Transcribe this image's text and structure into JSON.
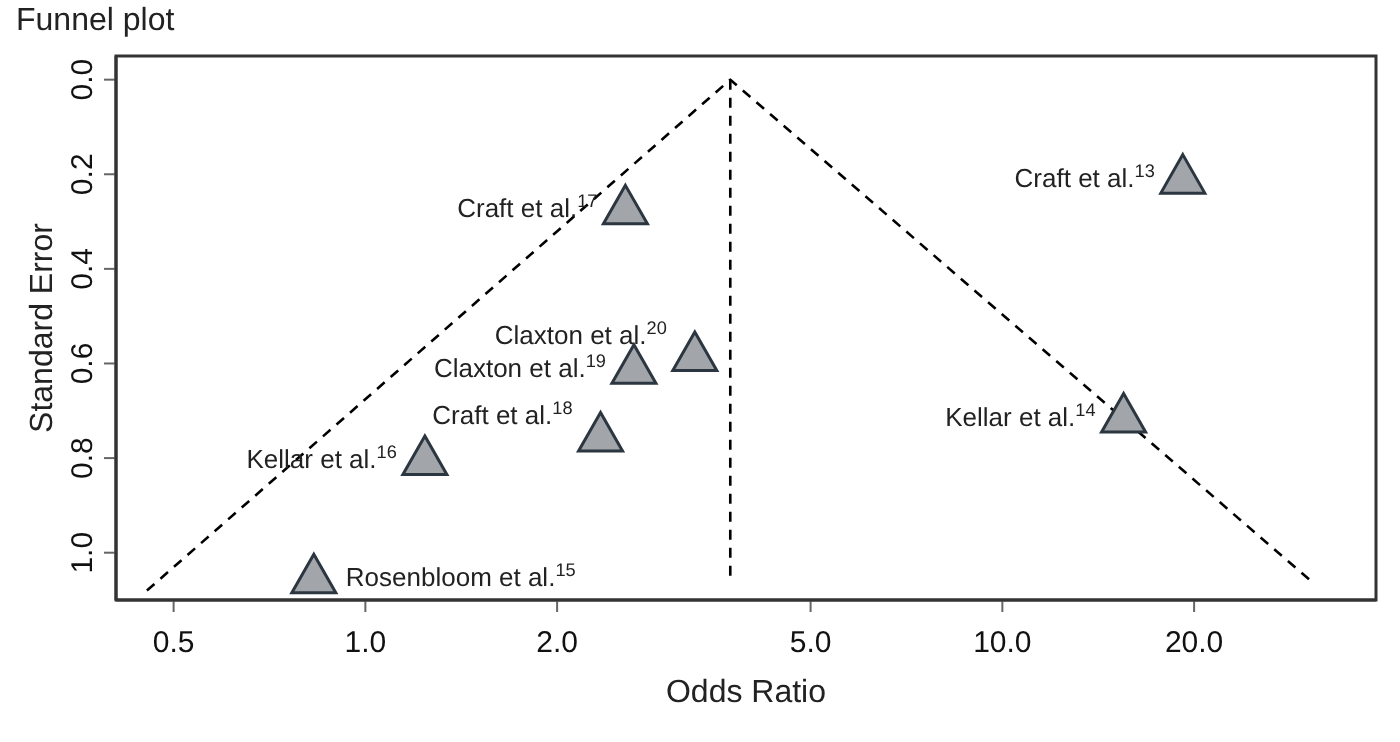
{
  "chart_data": {
    "type": "scatter",
    "title": "Funnel plot",
    "xlabel": "Odds Ratio",
    "ylabel": "Standard Error",
    "log": "x",
    "xlim": [
      0.406,
      38.6
    ],
    "xticks": [
      0.5,
      {
        "value": 1,
        "label": "1.0"
      },
      {
        "value": 2,
        "label": "2.0"
      },
      {
        "value": 5,
        "label": "5.0"
      },
      {
        "value": 10,
        "label": "10.0"
      },
      {
        "value": 20,
        "label": "20.0"
      }
    ],
    "ylim": [
      1.1,
      -0.05
    ],
    "yticks": [
      {
        "value": 0,
        "label": "0.0"
      },
      0.2,
      0.4,
      0.6,
      0.8,
      {
        "value": 1,
        "label": "1.0"
      }
    ],
    "marker": "triangle",
    "series": [
      {
        "color": "#a2a6aa",
        "x": [
          2.56,
          2.64,
          3.29,
          2.34,
          1.24,
          0.83,
          19.2,
          15.5
        ],
        "values": [
          0.27,
          0.607,
          0.58,
          0.75,
          0.8,
          1.05,
          0.205,
          0.71
        ]
      },
      {
        "type": "line",
        "color": "#000000",
        "line_style": "dashed",
        "marker": "none",
        "x": [
          0.454,
          3.74,
          30.3
        ],
        "values": [
          1.08,
          0,
          1.056
        ]
      },
      {
        "type": "line",
        "color": "#000000",
        "line_style": "dashed",
        "marker": "none",
        "x": [
          3.74,
          3.74
        ],
        "values": [
          0,
          1.056
        ]
      }
    ],
    "annotations": [
      {
        "text": "Craft et al.$^{17}$",
        "x": 2.56,
        "y": 0.27
      },
      {
        "text": "Claxton et al.$^{19}$",
        "x": 2.64,
        "y": 0.607
      },
      {
        "text": "Claxton et al.$^{20}$",
        "x": 3.29,
        "y": 0.58
      },
      {
        "text": "Craft et al.$^{18}$",
        "x": 2.34,
        "y": 0.75
      },
      {
        "text": "Kellar et al.$^{16}$",
        "x": 1.24,
        "y": 0.8
      },
      {
        "text": "Rosenbloom et al.$^{15}$",
        "x": 0.83,
        "y": 1.05
      },
      {
        "text": "Craft et al.$^{13}$",
        "x": 19.2,
        "y": 0.205
      },
      {
        "text": "Kellar et al.$^{14}$",
        "x": 15.5,
        "y": 0.71
      }
    ]
  }
}
